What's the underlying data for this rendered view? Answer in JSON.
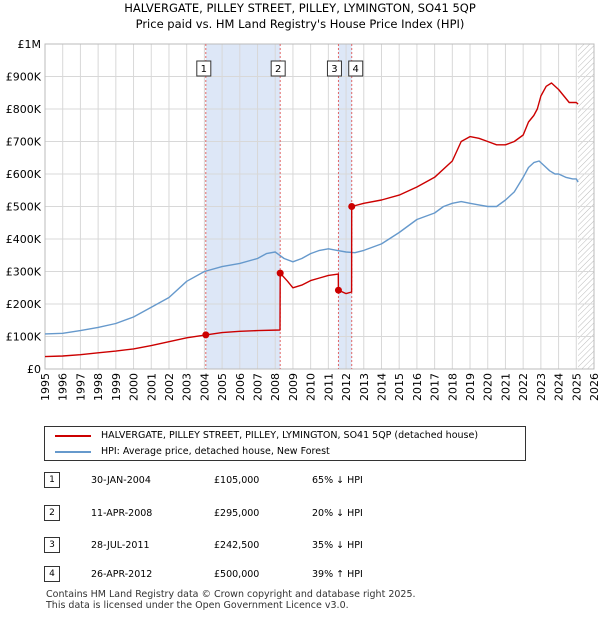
{
  "chart_data": {
    "type": "line",
    "title": "HALVERGATE, PILLEY STREET, PILLEY, LYMINGTON, SO41 5QP",
    "subtitle": "Price paid vs. HM Land Registry's House Price Index (HPI)",
    "xlabel": "",
    "ylabel": "",
    "xlim": [
      1995,
      2026
    ],
    "ylim": [
      0,
      1000000
    ],
    "x_ticks": [
      "1995",
      "1996",
      "1997",
      "1998",
      "1999",
      "2000",
      "2001",
      "2002",
      "2003",
      "2004",
      "2005",
      "2006",
      "2007",
      "2008",
      "2009",
      "2010",
      "2011",
      "2012",
      "2013",
      "2014",
      "2015",
      "2016",
      "2017",
      "2018",
      "2019",
      "2020",
      "2021",
      "2022",
      "2023",
      "2024",
      "2025",
      "2026"
    ],
    "y_ticks": [
      {
        "value": 0,
        "label": "£0"
      },
      {
        "value": 100000,
        "label": "£100K"
      },
      {
        "value": 200000,
        "label": "£200K"
      },
      {
        "value": 300000,
        "label": "£300K"
      },
      {
        "value": 400000,
        "label": "£400K"
      },
      {
        "value": 500000,
        "label": "£500K"
      },
      {
        "value": 600000,
        "label": "£600K"
      },
      {
        "value": 700000,
        "label": "£700K"
      },
      {
        "value": 800000,
        "label": "£800K"
      },
      {
        "value": 900000,
        "label": "£900K"
      },
      {
        "value": 1000000,
        "label": "£1M"
      }
    ],
    "grid": true,
    "shaded_periods": [
      {
        "from": 2004.08,
        "to": 2008.28
      },
      {
        "from": 2011.57,
        "to": 2012.32
      }
    ],
    "forecast_hatch_from": 2025.1,
    "series": [
      {
        "name": "HALVERGATE, PILLEY STREET, PILLEY, LYMINGTON, SO41 5QP (detached house)",
        "color": "#cc0000",
        "x": [
          1995.0,
          1996.0,
          1997.0,
          1998.0,
          1999.0,
          2000.0,
          2001.0,
          2002.0,
          2003.0,
          2004.08,
          2005.0,
          2006.0,
          2007.0,
          2008.27,
          2008.28,
          2008.7,
          2009.0,
          2009.5,
          2010.0,
          2010.5,
          2011.0,
          2011.56,
          2011.57,
          2012.0,
          2012.31,
          2012.32,
          2013.0,
          2014.0,
          2015.0,
          2016.0,
          2017.0,
          2018.0,
          2018.5,
          2019.0,
          2019.5,
          2020.0,
          2020.5,
          2021.0,
          2021.5,
          2022.0,
          2022.3,
          2022.6,
          2022.8,
          2023.0,
          2023.3,
          2023.6,
          2024.0,
          2024.3,
          2024.6,
          2025.0,
          2025.1
        ],
        "y": [
          38000,
          40000,
          44000,
          50000,
          55000,
          62000,
          72000,
          84000,
          96000,
          105000,
          112000,
          116000,
          118000,
          120000,
          295000,
          270000,
          250000,
          258000,
          272000,
          280000,
          288000,
          292000,
          242500,
          232000,
          237000,
          500000,
          510000,
          520000,
          535000,
          560000,
          590000,
          640000,
          700000,
          715000,
          710000,
          700000,
          690000,
          690000,
          700000,
          720000,
          760000,
          780000,
          800000,
          840000,
          870000,
          880000,
          860000,
          840000,
          820000,
          820000,
          815000
        ]
      },
      {
        "name": "HPI: Average price, detached house, New Forest",
        "color": "#6699cc",
        "x": [
          1995.0,
          1996.0,
          1997.0,
          1998.0,
          1999.0,
          2000.0,
          2001.0,
          2002.0,
          2003.0,
          2004.0,
          2005.0,
          2006.0,
          2007.0,
          2007.5,
          2008.0,
          2008.5,
          2009.0,
          2009.5,
          2010.0,
          2010.5,
          2011.0,
          2011.5,
          2012.0,
          2012.5,
          2013.0,
          2014.0,
          2015.0,
          2016.0,
          2017.0,
          2017.5,
          2018.0,
          2018.5,
          2019.0,
          2019.5,
          2020.0,
          2020.5,
          2021.0,
          2021.5,
          2022.0,
          2022.3,
          2022.6,
          2022.9,
          2023.2,
          2023.5,
          2023.8,
          2024.0,
          2024.4,
          2024.8,
          2025.0,
          2025.1
        ],
        "y": [
          108000,
          110000,
          118000,
          128000,
          140000,
          160000,
          190000,
          220000,
          270000,
          300000,
          315000,
          325000,
          340000,
          355000,
          360000,
          340000,
          330000,
          340000,
          355000,
          365000,
          370000,
          365000,
          360000,
          358000,
          365000,
          385000,
          420000,
          460000,
          480000,
          500000,
          510000,
          515000,
          510000,
          505000,
          500000,
          500000,
          520000,
          545000,
          590000,
          620000,
          635000,
          640000,
          625000,
          610000,
          600000,
          600000,
          590000,
          585000,
          585000,
          575000
        ]
      }
    ],
    "sales": [
      {
        "label": "1",
        "x": 2004.08,
        "y": 105000
      },
      {
        "label": "2",
        "x": 2008.28,
        "y": 295000
      },
      {
        "label": "3",
        "x": 2011.57,
        "y": 242500
      },
      {
        "label": "4",
        "x": 2012.32,
        "y": 500000
      }
    ]
  },
  "legend": {
    "property_label": "HALVERGATE, PILLEY STREET, PILLEY, LYMINGTON, SO41 5QP (detached house)",
    "hpi_label": "HPI: Average price, detached house, New Forest"
  },
  "sales_table": [
    {
      "num": "1",
      "date": "30-JAN-2004",
      "price": "£105,000",
      "hpi": "65% ↓ HPI"
    },
    {
      "num": "2",
      "date": "11-APR-2008",
      "price": "£295,000",
      "hpi": "20% ↓ HPI"
    },
    {
      "num": "3",
      "date": "28-JUL-2011",
      "price": "£242,500",
      "hpi": "35% ↓ HPI"
    },
    {
      "num": "4",
      "date": "26-APR-2012",
      "price": "£500,000",
      "hpi": "39% ↑ HPI"
    }
  ],
  "footer": {
    "line1": "Contains HM Land Registry data © Crown copyright and database right 2025.",
    "line2": "This data is licensed under the Open Government Licence v3.0."
  },
  "colors": {
    "property": "#cc0000",
    "hpi": "#6699cc",
    "shade": "#dde7f7",
    "grid": "#d8d8d8"
  }
}
